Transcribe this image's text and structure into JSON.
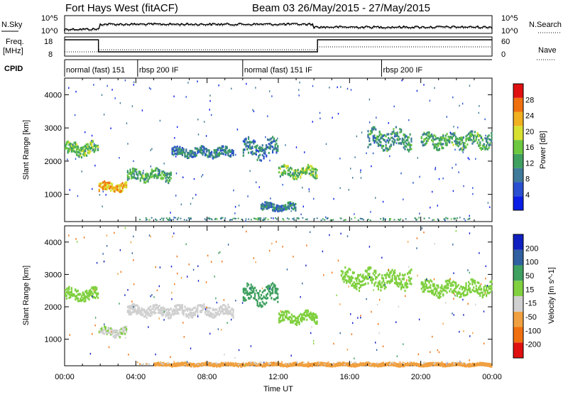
{
  "header": {
    "radar": "Fort Hays West (fitACF)",
    "beam_dates": "Beam 03 26/May/2015 - 27/May/2015"
  },
  "summary_panels": {
    "nsky_label": "N.Sky",
    "nsearch_label": "N.Search",
    "noise_tick_top": "10^5",
    "noise_tick_bottom": "10^0",
    "freq_label_line1": "Freq.",
    "freq_label_line2": "[MHz]",
    "freq_ticks": [
      "18",
      "8"
    ],
    "nave_label": "Nave",
    "nave_ticks": [
      "60",
      "0"
    ],
    "cpid_label": "CPID",
    "cpid_segments": [
      {
        "label": "normal (fast) 151",
        "start_hour": 0
      },
      {
        "label": "rbsp 200 IF",
        "start_hour": 4.1
      },
      {
        "label": "normal (fast) 151 IF",
        "start_hour": 10
      },
      {
        "label": "rbsp 200 IF",
        "start_hour": 17.8
      }
    ]
  },
  "colors": {
    "power_scale": [
      "#0a1ee6",
      "#2a4fd0",
      "#3f7a9a",
      "#3fa060",
      "#6cc840",
      "#d8e030",
      "#f0b020",
      "#f07010",
      "#e01010"
    ],
    "velocity_scale": [
      "#e01010",
      "#f07010",
      "#f0a040",
      "#d0d0d0",
      "#80d040",
      "#3fa060",
      "#3060a0",
      "#1020c0"
    ]
  },
  "chart_data": [
    {
      "type": "heatmap",
      "name": "Power",
      "ylabel": "Slant Range [km]",
      "xlabel": "Time UT",
      "x_ticks": [
        "00:00",
        "04:00",
        "08:00",
        "12:00",
        "16:00",
        "20:00",
        "00:00"
      ],
      "x_range_hours": [
        0,
        24
      ],
      "y_ticks": [
        1000,
        2000,
        3000,
        4000
      ],
      "y_range_km": [
        180,
        4500
      ],
      "colorbar_label": "Power [dB]",
      "colorbar_ticks": [
        4,
        8,
        12,
        16,
        20,
        24,
        28
      ],
      "colorbar_range": [
        0,
        30
      ],
      "echo_bands": [
        {
          "t_start": 0.0,
          "t_end": 1.9,
          "km_center": 2400,
          "km_width": 350,
          "level": 14
        },
        {
          "t_start": 1.9,
          "t_end": 3.5,
          "km_center": 1250,
          "km_width": 250,
          "level": 22
        },
        {
          "t_start": 3.5,
          "t_end": 6.0,
          "km_center": 1600,
          "km_width": 300,
          "level": 12
        },
        {
          "t_start": 6.0,
          "t_end": 9.5,
          "km_center": 2300,
          "km_width": 250,
          "level": 8
        },
        {
          "t_start": 10.0,
          "t_end": 12.0,
          "km_center": 2400,
          "km_width": 500,
          "level": 8
        },
        {
          "t_start": 12.0,
          "t_end": 14.2,
          "km_center": 1700,
          "km_width": 300,
          "level": 14
        },
        {
          "t_start": 11.0,
          "t_end": 13.0,
          "km_center": 650,
          "km_width": 200,
          "level": 8
        },
        {
          "t_start": 17.0,
          "t_end": 19.5,
          "km_center": 2700,
          "km_width": 500,
          "level": 10
        },
        {
          "t_start": 20.0,
          "t_end": 24.0,
          "km_center": 2650,
          "km_width": 400,
          "level": 12
        }
      ]
    },
    {
      "type": "heatmap",
      "name": "Velocity",
      "ylabel": "Slant Range [km]",
      "xlabel": "Time UT",
      "x_ticks": [
        "00:00",
        "04:00",
        "08:00",
        "12:00",
        "16:00",
        "20:00",
        "00:00"
      ],
      "x_range_hours": [
        0,
        24
      ],
      "y_ticks": [
        1000,
        2000,
        3000,
        4000
      ],
      "y_range_km": [
        180,
        4500
      ],
      "colorbar_label": "Velocity [m s^-1]",
      "colorbar_ticks": [
        -200,
        -100,
        -50,
        -15,
        15,
        50,
        100,
        200
      ],
      "echo_bands": [
        {
          "t_start": 0.0,
          "t_end": 1.9,
          "km_center": 2400,
          "km_width": 350,
          "velocity": 0
        },
        {
          "t_start": 1.9,
          "t_end": 3.5,
          "km_center": 1250,
          "km_width": 250,
          "velocity": -20
        },
        {
          "t_start": 3.5,
          "t_end": 9.5,
          "km_center": 1900,
          "km_width": 300,
          "velocity": -40
        },
        {
          "t_start": 10.0,
          "t_end": 12.0,
          "km_center": 2400,
          "km_width": 500,
          "velocity": 40
        },
        {
          "t_start": 12.0,
          "t_end": 14.2,
          "km_center": 1700,
          "km_width": 300,
          "velocity": 0
        },
        {
          "t_start": 15.5,
          "t_end": 19.5,
          "km_center": 2900,
          "km_width": 500,
          "velocity": 0
        },
        {
          "t_start": 20.0,
          "t_end": 24.0,
          "km_center": 2600,
          "km_width": 400,
          "velocity": 0
        },
        {
          "t_start": 5.0,
          "t_end": 24.0,
          "km_center": 250,
          "km_width": 80,
          "velocity": -60
        }
      ]
    }
  ]
}
